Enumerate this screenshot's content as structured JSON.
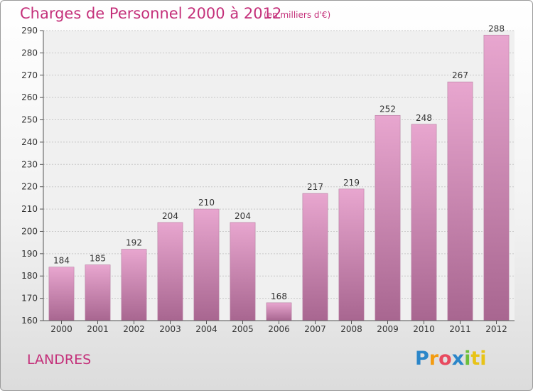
{
  "header": {
    "title": "Charges de Personnel 2000 à 2012",
    "subtitle": "(en milliers d'€)"
  },
  "footer": {
    "commune": "LANDRES",
    "logo_letters": [
      "P",
      "r",
      "o",
      "x",
      "i",
      "ti"
    ]
  },
  "colors": {
    "accent": "#c4307a",
    "bar_top": "#e8a6cf",
    "bar_bottom": "#a86690"
  },
  "chart_data": {
    "type": "bar",
    "title": "Charges de Personnel 2000 à 2012",
    "subtitle": "(en milliers d'€)",
    "xlabel": "",
    "ylabel": "",
    "categories": [
      "2000",
      "2001",
      "2002",
      "2003",
      "2004",
      "2005",
      "2006",
      "2007",
      "2008",
      "2009",
      "2010",
      "2011",
      "2012"
    ],
    "values": [
      184,
      185,
      192,
      204,
      210,
      204,
      168,
      217,
      219,
      252,
      248,
      267,
      288
    ],
    "ylim": [
      160,
      290
    ],
    "yticks": [
      160,
      170,
      180,
      190,
      200,
      210,
      220,
      230,
      240,
      250,
      260,
      270,
      280,
      290
    ],
    "grid": true,
    "data_labels": true
  }
}
